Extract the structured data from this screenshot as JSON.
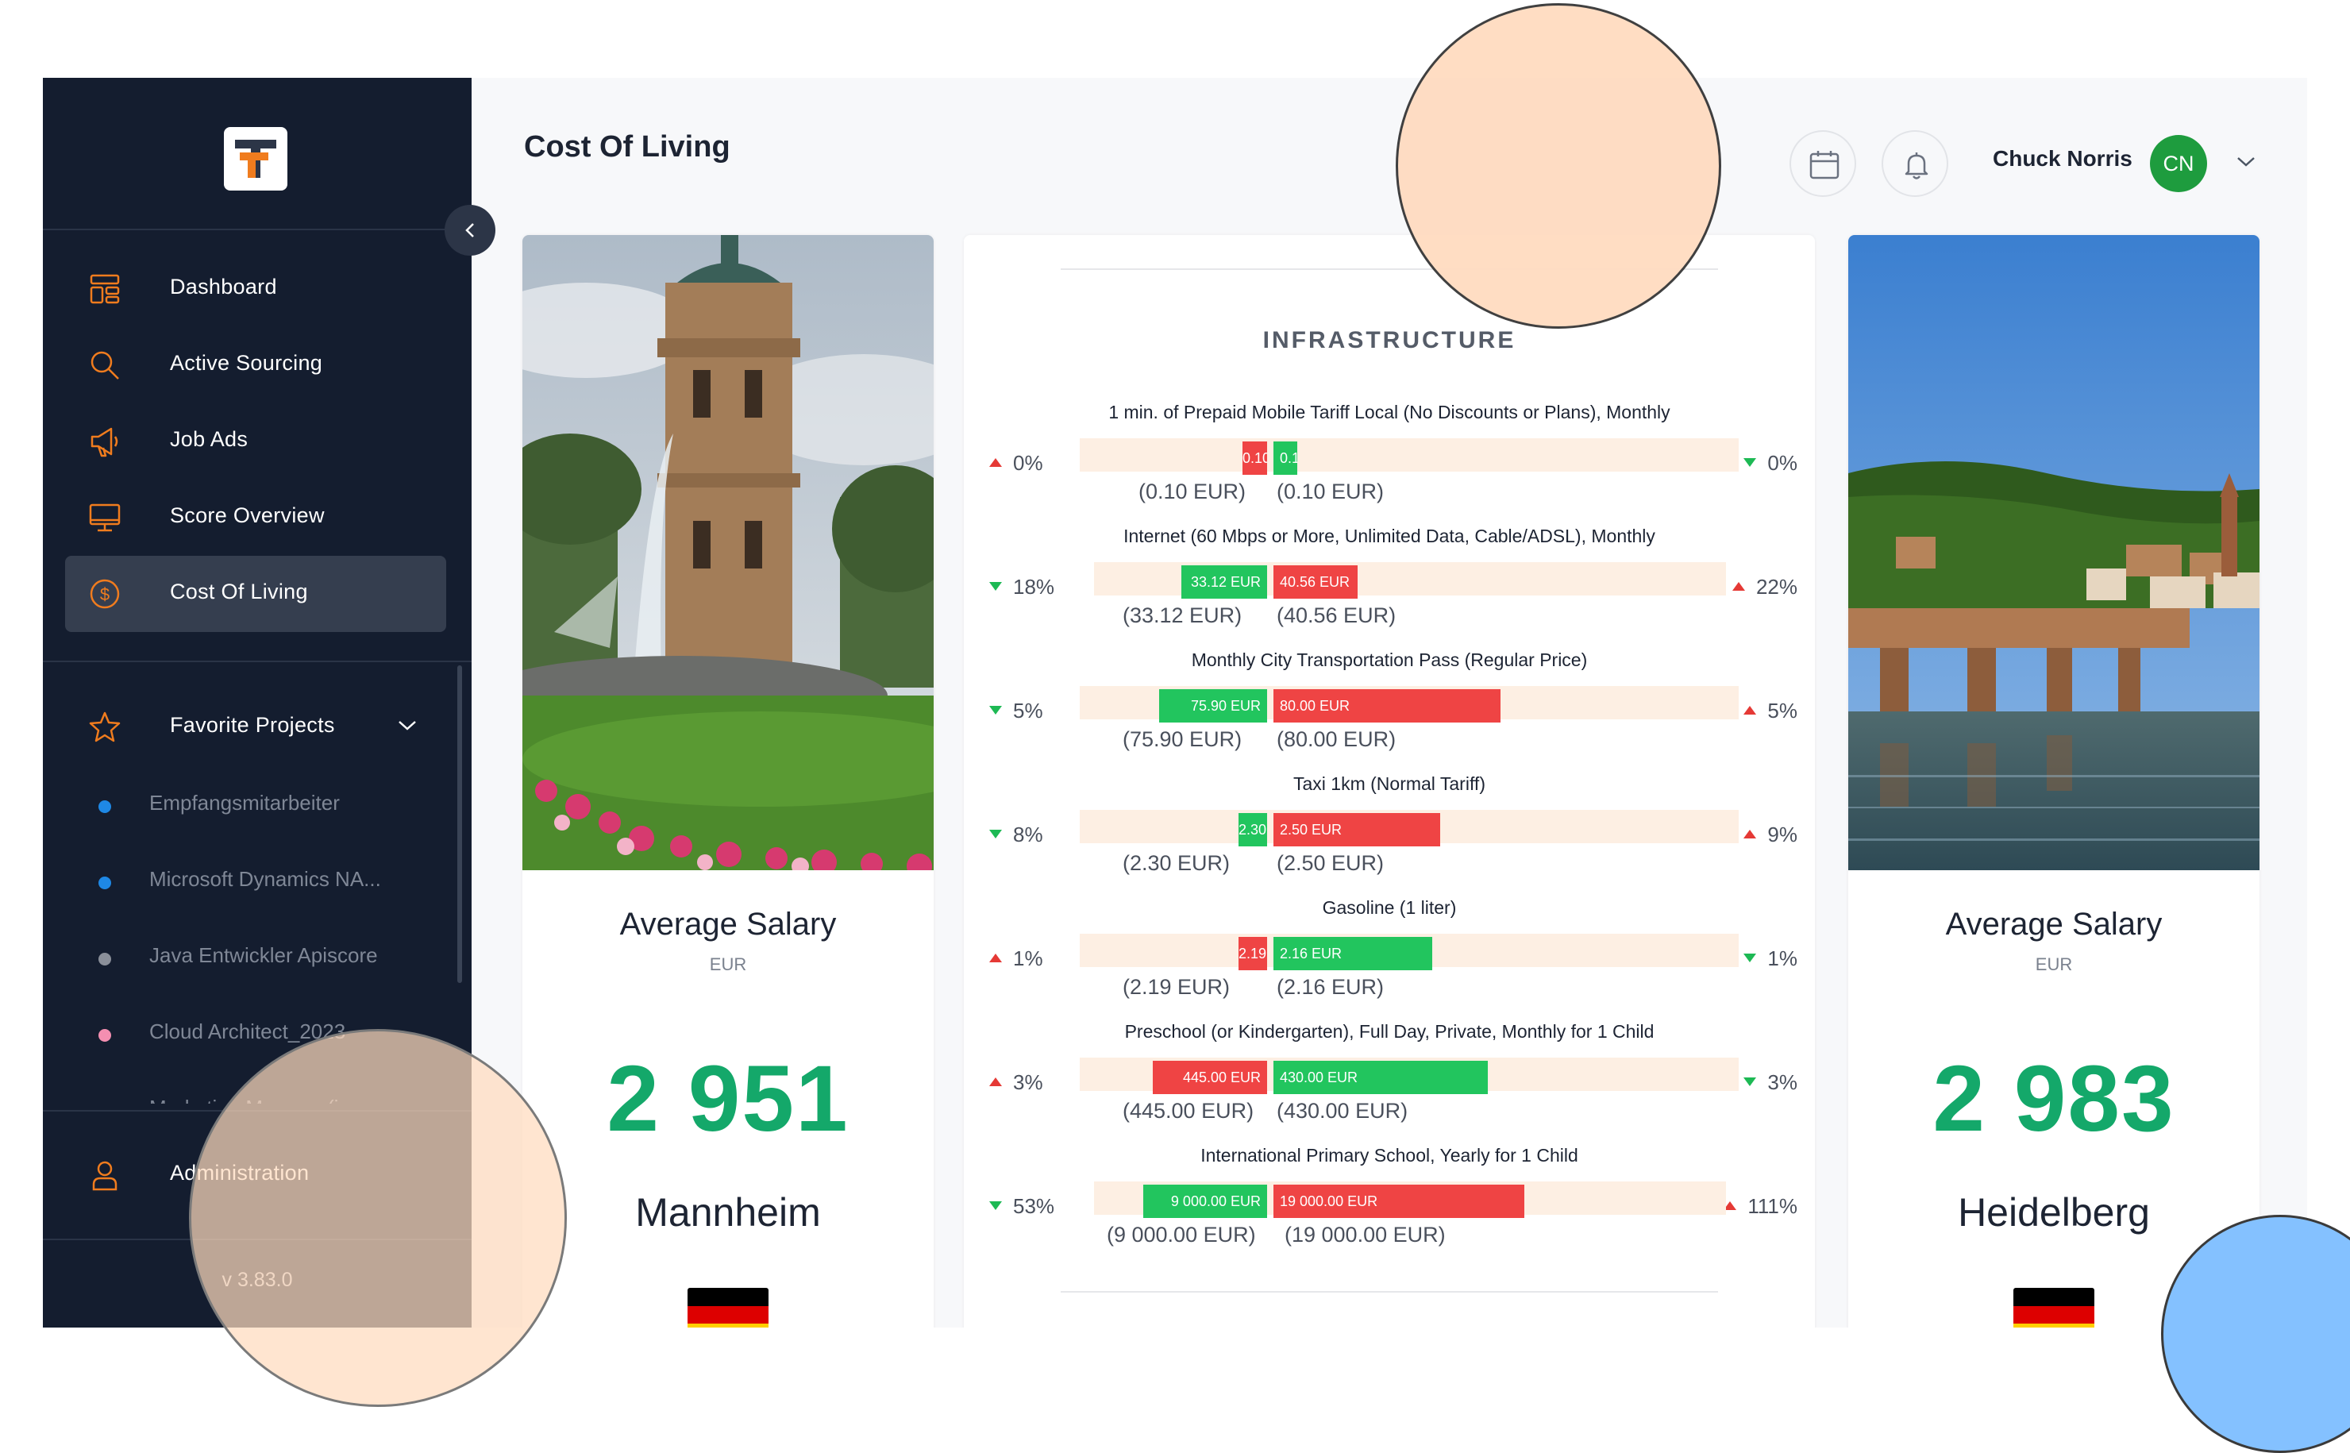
{
  "header": {
    "page_title": "Cost Of Living",
    "user_name": "Chuck Norris",
    "user_initials": "CN"
  },
  "sidebar": {
    "nav": [
      {
        "label": "Dashboard",
        "icon": "layout-icon"
      },
      {
        "label": "Active Sourcing",
        "icon": "search-icon"
      },
      {
        "label": "Job Ads",
        "icon": "megaphone-icon"
      },
      {
        "label": "Score Overview",
        "icon": "monitor-icon"
      },
      {
        "label": "Cost Of Living",
        "icon": "dollar-circle-icon",
        "active": true
      }
    ],
    "favorites_label": "Favorite Projects",
    "favorites": [
      {
        "label": "Empfangsmitarbeiter",
        "dot_color": "#1e88e5"
      },
      {
        "label": "Microsoft Dynamics NA...",
        "dot_color": "#1e88e5"
      },
      {
        "label": "Java Entwickler Apiscore",
        "dot_color": "#8a8f99"
      },
      {
        "label": "Cloud Architect_2023",
        "dot_color": "#f48fb1"
      },
      {
        "label": "Marketing Manager(in...",
        "dot_color": "#fdd835"
      }
    ],
    "administration_label": "Administration",
    "version": "v 3.83.0"
  },
  "left_city": {
    "avg_label": "Average Salary",
    "currency": "EUR",
    "salary": "2 951",
    "name": "Mannheim"
  },
  "right_city": {
    "avg_label": "Average Salary",
    "currency": "EUR",
    "salary": "2 983",
    "name": "Heidelberg"
  },
  "infrastructure": {
    "title": "INFRASTRUCTURE",
    "rows": [
      {
        "label": "1 min. of Prepaid Mobile Tariff Local (No Discounts or Plans), Monthly",
        "left_pct": "0%",
        "left_dir": "up",
        "right_pct": "0%",
        "right_dir": "down",
        "left_bar": "0.10 EUR",
        "right_bar": "0.10 EUR",
        "left_paren": "(0.10 EUR)",
        "right_paren": "(0.10 EUR)",
        "left_color": "red",
        "right_color": "green"
      },
      {
        "label": "Internet (60 Mbps or More, Unlimited Data, Cable/ADSL), Monthly",
        "left_pct": "18%",
        "left_dir": "down",
        "right_pct": "22%",
        "right_dir": "up",
        "left_bar": "33.12 EUR",
        "right_bar": "40.56 EUR",
        "left_paren": "(33.12 EUR)",
        "right_paren": "(40.56 EUR)",
        "left_color": "green",
        "right_color": "red"
      },
      {
        "label": "Monthly City Transportation Pass (Regular Price)",
        "left_pct": "5%",
        "left_dir": "down",
        "right_pct": "5%",
        "right_dir": "up",
        "left_bar": "75.90 EUR",
        "right_bar": "80.00 EUR",
        "left_paren": "(75.90 EUR)",
        "right_paren": "(80.00 EUR)",
        "left_color": "green",
        "right_color": "red"
      },
      {
        "label": "Taxi 1km (Normal Tariff)",
        "left_pct": "8%",
        "left_dir": "down",
        "right_pct": "9%",
        "right_dir": "up",
        "left_bar": "2.30 EUR",
        "right_bar": "2.50 EUR",
        "left_paren": "(2.30 EUR)",
        "right_paren": "(2.50 EUR)",
        "left_color": "green",
        "right_color": "red"
      },
      {
        "label": "Gasoline (1 liter)",
        "left_pct": "1%",
        "left_dir": "up",
        "right_pct": "1%",
        "right_dir": "down",
        "left_bar": "2.19 EUR",
        "right_bar": "2.16 EUR",
        "left_paren": "(2.19 EUR)",
        "right_paren": "(2.16 EUR)",
        "left_color": "red",
        "right_color": "green"
      },
      {
        "label": "Preschool (or Kindergarten), Full Day, Private, Monthly for 1 Child",
        "left_pct": "3%",
        "left_dir": "up",
        "right_pct": "3%",
        "right_dir": "down",
        "left_bar": "445.00 EUR",
        "right_bar": "430.00 EUR",
        "left_paren": "(445.00 EUR)",
        "right_paren": "(430.00 EUR)",
        "left_color": "red",
        "right_color": "green"
      },
      {
        "label": "International Primary School, Yearly for 1 Child",
        "left_pct": "53%",
        "left_dir": "down",
        "right_pct": "111%",
        "right_dir": "up",
        "left_bar": "9 000.00 EUR",
        "right_bar": "19 000.00 EUR",
        "left_paren": "(9 000.00 EUR)",
        "right_paren": "(19 000.00 EUR)",
        "left_color": "green",
        "right_color": "red"
      }
    ]
  },
  "colors": {
    "sidebar_bg": "#141d2f",
    "accent_orange": "#f07c1e",
    "salary_green": "#14a86a",
    "bar_red": "#ef4444",
    "bar_green": "#22c55e",
    "avatar_green": "#1e9c3e"
  }
}
